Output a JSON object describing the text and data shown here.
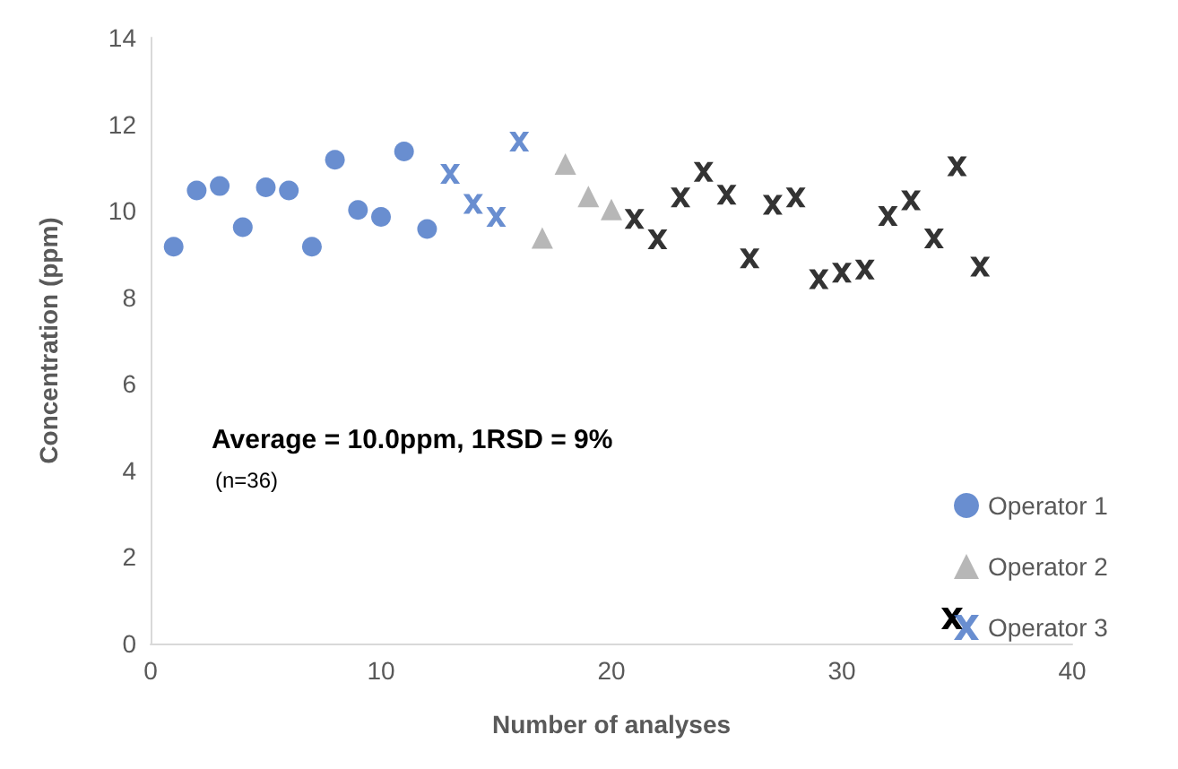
{
  "chart_data": {
    "type": "scatter",
    "xlabel": "Number of analyses",
    "ylabel": "Concentration (ppm)",
    "xlim": [
      0,
      40
    ],
    "xticks": [
      0,
      10,
      20,
      30,
      40
    ],
    "ylim": [
      0,
      14
    ],
    "yticks": [
      0,
      2,
      4,
      6,
      8,
      10,
      12,
      14
    ],
    "grid": false,
    "legend": "bottom right",
    "annotations": [
      "Average = 10.0ppm, 1RSD = 9%",
      "(n=36)"
    ],
    "series": [
      {
        "name": "Operator 1",
        "color": "#4472c4",
        "marker": "circle",
        "x": [
          1,
          2,
          3,
          4,
          5,
          6,
          7,
          8,
          9,
          10,
          11,
          12
        ],
        "values": [
          9.17,
          10.47,
          10.57,
          9.62,
          10.54,
          10.47,
          9.17,
          11.18,
          10.02,
          9.86,
          11.37,
          9.58
        ]
      },
      {
        "name": "Operator 2",
        "color": "#a5a5a5",
        "marker": "triangle",
        "x": [
          17,
          18,
          19,
          20
        ],
        "values": [
          9.37,
          11.08,
          10.33,
          10.03
        ]
      },
      {
        "name": "Operator 3",
        "color": "#4472c4",
        "marker": "cross",
        "x": [
          13,
          14,
          15,
          16
        ],
        "values": [
          10.85,
          10.16,
          9.86,
          11.6
        ]
      },
      {
        "color": "#000000",
        "marker": "cross",
        "x": [
          21,
          22,
          23,
          24,
          25,
          26,
          27,
          28,
          29,
          30,
          31,
          32,
          33,
          34,
          35,
          36
        ],
        "values": [
          9.81,
          9.34,
          10.31,
          10.9,
          10.37,
          8.9,
          10.14,
          10.31,
          8.42,
          8.57,
          8.64,
          9.88,
          10.24,
          9.36,
          11.03,
          8.71
        ]
      }
    ]
  }
}
